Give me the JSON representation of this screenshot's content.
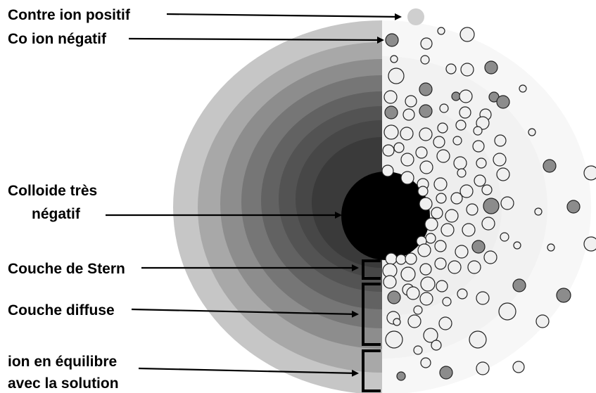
{
  "labels": {
    "counter_ion_positive": "Contre ion positif",
    "co_ion_negative": "Co ion négatif",
    "colloid_line1": "Colloide très",
    "colloid_line2": "négatif",
    "stern_layer": "Couche de Stern",
    "diffuse_layer": "Couche diffuse",
    "equilibrium_line1": "ion en équilibre",
    "equilibrium_line2": "avec la solution"
  },
  "colors": {
    "colloid": "#000000",
    "counter_ion_fill": "#f0f0f0",
    "co_ion_fill": "#8c8c8c",
    "ion_stroke": "#222222",
    "outer_layer": "#c6c6c6",
    "inner_layer": "#3a3a3a",
    "right_half_bg": "#f7f7f7"
  }
}
